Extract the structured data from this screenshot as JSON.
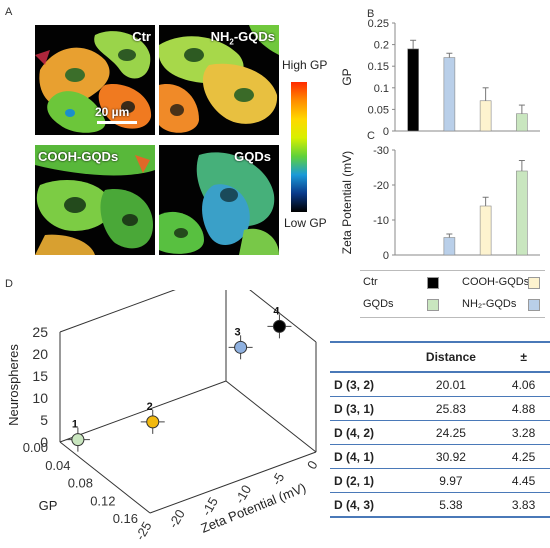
{
  "panels": {
    "a": "A",
    "b": "B",
    "c": "C",
    "d": "D"
  },
  "micrographs": [
    {
      "label": "Ctr",
      "scale_bar": "20 µm"
    },
    {
      "label": "NH",
      "label_sub": "2",
      "label_suffix": "-GQDs",
      "scale_bar": ""
    },
    {
      "label": "COOH-GQDs",
      "scale_bar": ""
    },
    {
      "label": "GQDs",
      "scale_bar": ""
    }
  ],
  "colorbar": {
    "high": "High GP",
    "low": "Low GP",
    "gradient": [
      "#ff2a00",
      "#ff8c00",
      "#ffd800",
      "#d8f000",
      "#5fd13a",
      "#1a9ad8",
      "#0a3a8a",
      "#000000"
    ]
  },
  "legend": {
    "items": [
      {
        "name": "Ctr",
        "color": "#000000"
      },
      {
        "name": "COOH-GQDs",
        "color": "#fdf3cf"
      },
      {
        "name": "GQDs",
        "color": "#c9e6bf"
      },
      {
        "name": "NH₂-GQDs",
        "color": "#b9cfe9"
      }
    ]
  },
  "chart_data": [
    {
      "type": "bar",
      "panel": "B",
      "categories": [
        "Ctr",
        "NH₂-GQDs",
        "COOH-GQDs",
        "GQDs"
      ],
      "values": [
        0.19,
        0.17,
        0.07,
        0.04
      ],
      "errors": [
        0.02,
        0.01,
        0.03,
        0.02
      ],
      "colors": [
        "#000000",
        "#b9cfe9",
        "#fdf3cf",
        "#c9e6bf"
      ],
      "ylabel": "GP",
      "ylim": [
        0,
        0.25
      ],
      "yticks": [
        "0",
        "0.05",
        "0.1",
        "0.15",
        "0.2",
        "0.25"
      ]
    },
    {
      "type": "bar",
      "panel": "C",
      "categories": [
        "Ctr",
        "NH₂-GQDs",
        "COOH-GQDs",
        "GQDs"
      ],
      "values": [
        0,
        -5,
        -14,
        -24
      ],
      "errors": [
        0,
        1,
        2.5,
        3
      ],
      "colors": [
        "#000000",
        "#b9cfe9",
        "#fdf3cf",
        "#c9e6bf"
      ],
      "ylabel": "Zeta Potential (mV)",
      "ylim": [
        0,
        -30
      ],
      "yticks": [
        "0",
        "-10",
        "-20",
        "-30"
      ]
    },
    {
      "type": "scatter",
      "panel": "D",
      "points": [
        {
          "label": "1",
          "gp": 0.04,
          "zeta": -24,
          "neurospheres": 2,
          "color": "#c9e6bf"
        },
        {
          "label": "2",
          "gp": 0.07,
          "zeta": -14,
          "neurospheres": 2,
          "color": "#f2b90f"
        },
        {
          "label": "3",
          "gp": 0.17,
          "zeta": -5,
          "neurospheres": 19,
          "color": "#8fb1e0"
        },
        {
          "label": "4",
          "gp": 0.19,
          "zeta": 0,
          "neurospheres": 22,
          "color": "#000000"
        }
      ],
      "zlabel": "Neurospheres",
      "zticks": [
        "0",
        "5",
        "10",
        "15",
        "20",
        "25"
      ],
      "xlabel": "GP",
      "xticks": [
        "0.00",
        "0.04",
        "0.08",
        "0.12",
        "0.16"
      ],
      "ylabel": "Zeta Potential (mV)",
      "yticks": [
        "0",
        "-5",
        "-10",
        "-15",
        "-20",
        "-25"
      ]
    }
  ],
  "table": {
    "headers": [
      "",
      "Distance",
      "±"
    ],
    "rows": [
      [
        "D (3, 2)",
        "20.01",
        "4.06"
      ],
      [
        "D (3, 1)",
        "25.83",
        "4.88"
      ],
      [
        "D (4, 2)",
        "24.25",
        "3.28"
      ],
      [
        "D (4, 1)",
        "30.92",
        "4.25"
      ],
      [
        "D (2, 1)",
        "9.97",
        "4.45"
      ],
      [
        "D (4, 3)",
        "5.38",
        "3.83"
      ]
    ]
  }
}
